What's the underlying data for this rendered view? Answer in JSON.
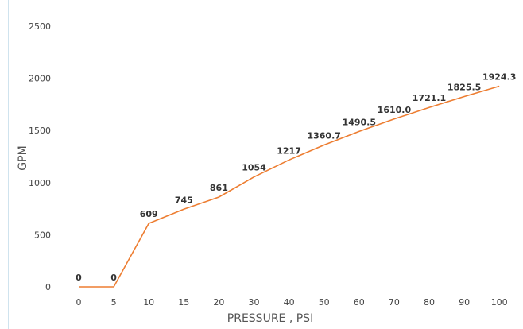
{
  "chart_data": {
    "type": "line",
    "categories": [
      "0",
      "5",
      "10",
      "15",
      "20",
      "30",
      "40",
      "50",
      "60",
      "70",
      "80",
      "90",
      "100"
    ],
    "values": [
      0,
      0,
      609,
      745,
      861,
      1054,
      1217,
      1360.7,
      1490.5,
      1610.0,
      1721.1,
      1825.5,
      1924.3
    ],
    "data_labels": [
      "0",
      "0",
      "609",
      "745",
      "861",
      "1054",
      "1217",
      "1360.7",
      "1490.5",
      "1610.0",
      "1721.1",
      "1825.5",
      "1924.3"
    ],
    "xlabel": "PRESSURE , PSI",
    "ylabel": "GPM",
    "ylim": [
      0,
      2500
    ],
    "yticks": [
      0,
      500,
      1000,
      1500,
      2000,
      2500
    ],
    "grid": false,
    "line_color": "#ed7d31"
  }
}
